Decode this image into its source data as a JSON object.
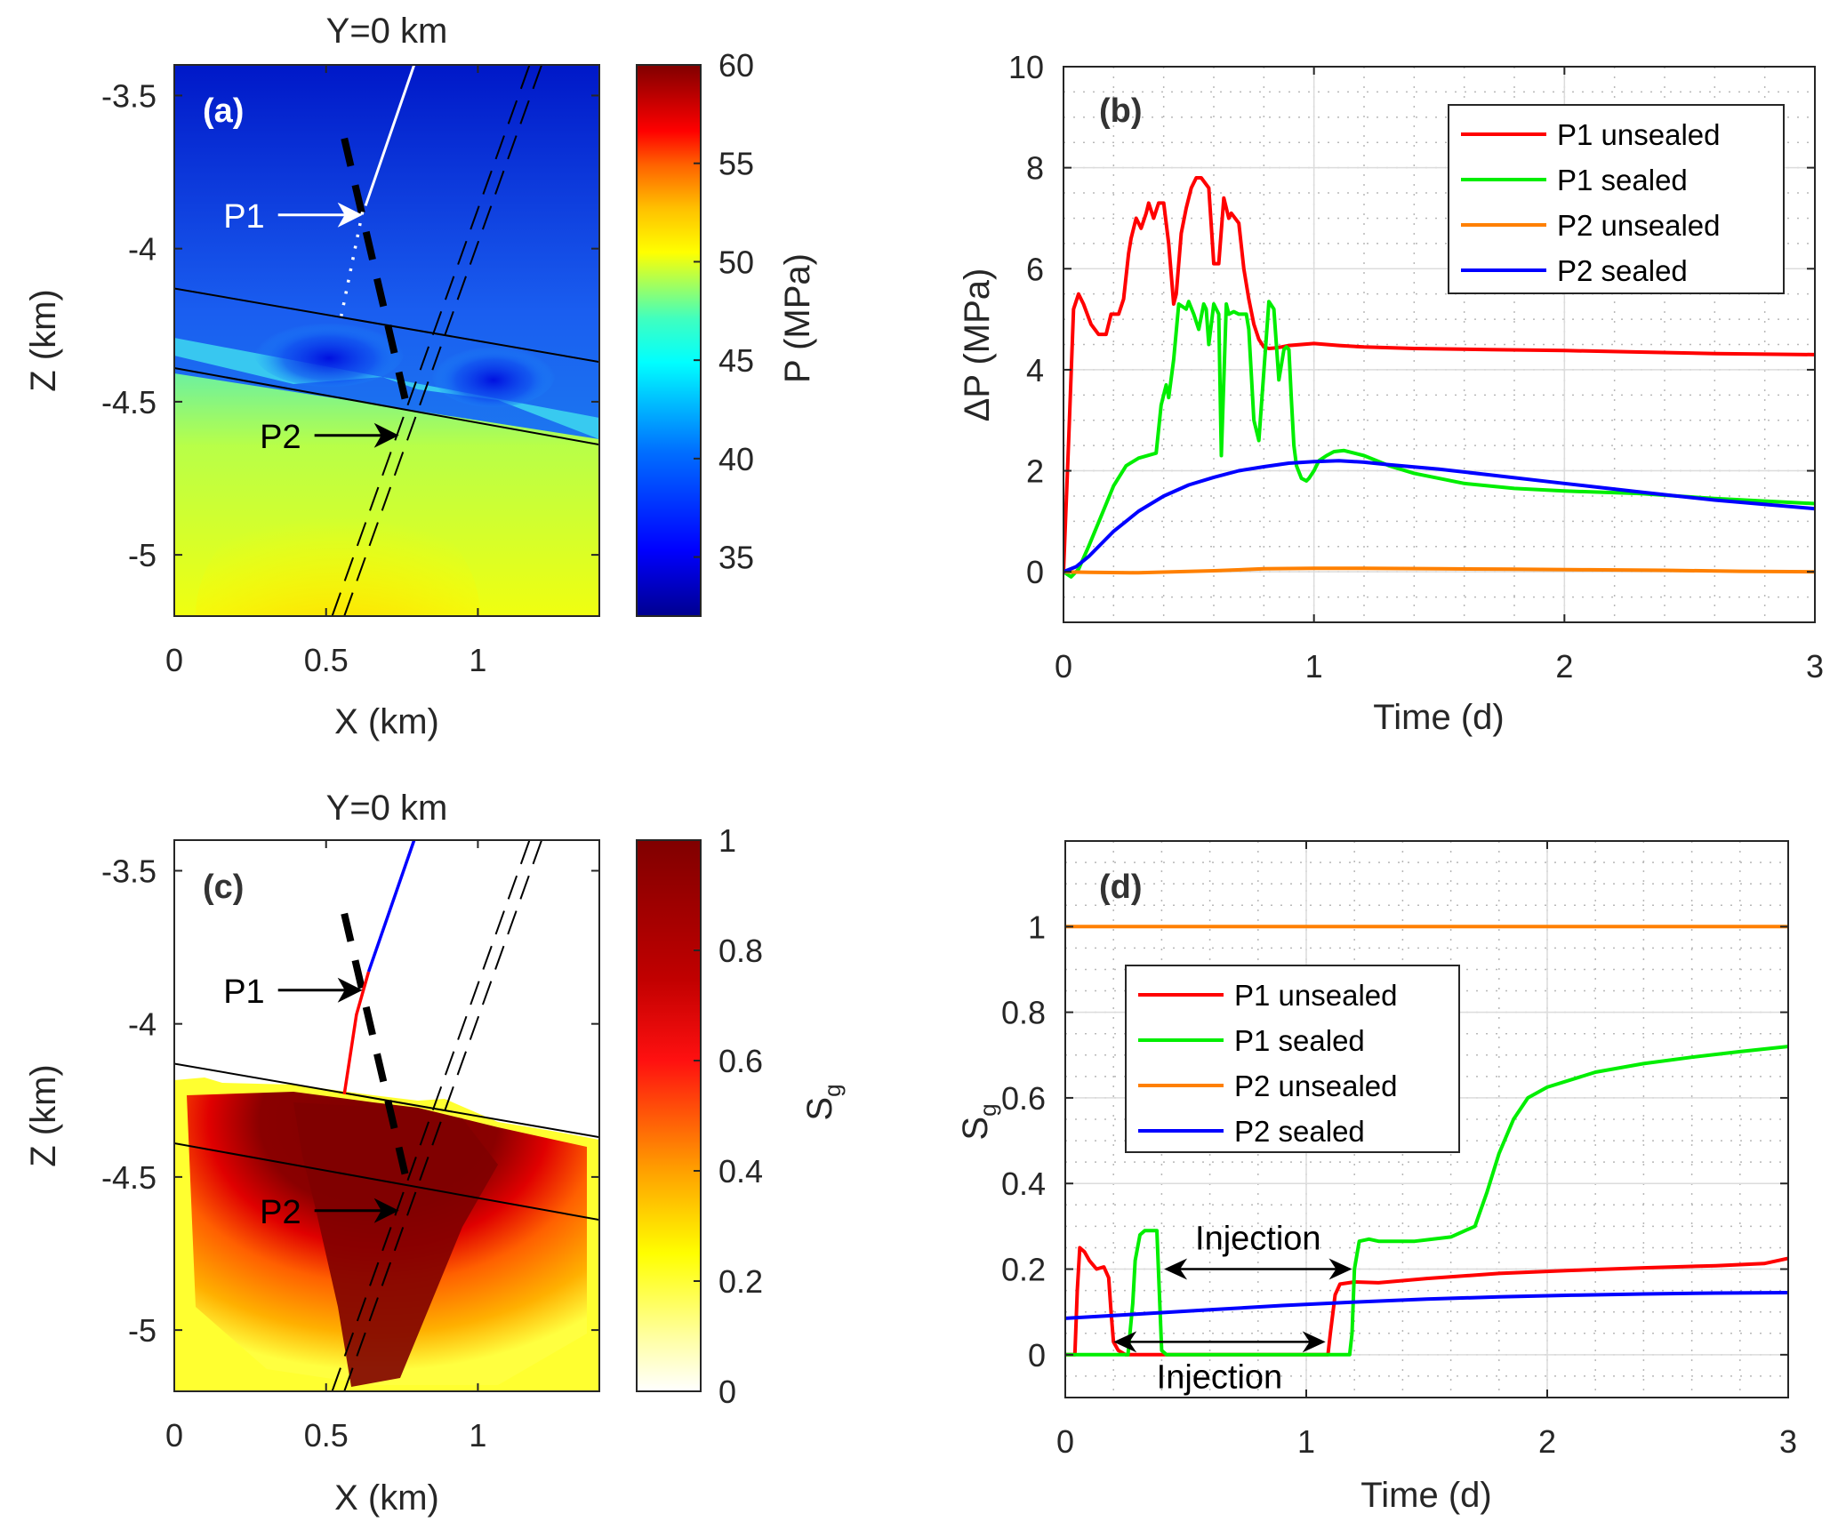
{
  "chart_data": [
    {
      "id": "a",
      "type": "heatmap",
      "panel_label": "(a)",
      "title": "Y=0 km",
      "xlabel": "X (km)",
      "ylabel": "Z (km)",
      "xlim": [
        0,
        1.4
      ],
      "ylim": [
        -5.2,
        -3.4
      ],
      "xticks": [
        0,
        0.5,
        1
      ],
      "xtick_labels": [
        "0",
        "0.5",
        "1"
      ],
      "yticks": [
        -3.5,
        -4,
        -4.5,
        -5
      ],
      "ytick_labels": [
        "-3.5",
        "-4",
        "-4.5",
        "-5"
      ],
      "colormap": "jet",
      "colorbar": {
        "label": "P (MPa)",
        "range": [
          32,
          60
        ],
        "ticks": [
          35,
          40,
          45,
          50,
          55,
          60
        ],
        "tick_labels": [
          "35",
          "40",
          "45",
          "50",
          "55",
          "60"
        ]
      },
      "annotations": [
        {
          "text": "P1",
          "color": "#ffffff",
          "x": 0.62,
          "z": -3.89
        },
        {
          "text": "P2",
          "color": "#000000",
          "x": 0.74,
          "z": -4.61
        }
      ],
      "features": {
        "well_color": "#ffffff",
        "upper_layer_line": [
          [
            0,
            -4.13
          ],
          [
            1.4,
            -4.37
          ]
        ],
        "lower_layer_line": [
          [
            0,
            -4.39
          ],
          [
            1.4,
            -4.64
          ]
        ]
      }
    },
    {
      "id": "b",
      "type": "line",
      "panel_label": "(b)",
      "xlabel": "Time (d)",
      "ylabel": "ΔP (MPa)",
      "xlim": [
        0,
        3
      ],
      "ylim": [
        -1,
        10
      ],
      "xticks": [
        0,
        1,
        2,
        3
      ],
      "xtick_labels": [
        "0",
        "1",
        "2",
        "3"
      ],
      "yticks": [
        0,
        2,
        4,
        6,
        8,
        10
      ],
      "ytick_labels": [
        "0",
        "2",
        "4",
        "6",
        "8",
        "10"
      ],
      "grid": true,
      "legend": "top-right",
      "series": [
        {
          "name": "P1 unsealed",
          "color": "#ff0000",
          "x": [
            0,
            0.02,
            0.04,
            0.06,
            0.08,
            0.11,
            0.14,
            0.17,
            0.19,
            0.2,
            0.22,
            0.24,
            0.26,
            0.27,
            0.29,
            0.31,
            0.33,
            0.34,
            0.36,
            0.38,
            0.4,
            0.42,
            0.44,
            0.45,
            0.47,
            0.49,
            0.51,
            0.53,
            0.55,
            0.58,
            0.6,
            0.62,
            0.64,
            0.66,
            0.67,
            0.7,
            0.72,
            0.74,
            0.76,
            0.78,
            0.8,
            0.82,
            0.84,
            0.87,
            0.9,
            0.95,
            1.0,
            1.1,
            1.2,
            1.4,
            1.7,
            2.0,
            2.3,
            2.6,
            3.0
          ],
          "y": [
            0,
            2.5,
            5.2,
            5.5,
            5.3,
            4.9,
            4.7,
            4.7,
            5.1,
            5.1,
            5.1,
            5.4,
            6.3,
            6.6,
            7.0,
            6.8,
            7.1,
            7.3,
            7.0,
            7.3,
            7.3,
            6.5,
            5.3,
            5.5,
            6.7,
            7.2,
            7.6,
            7.8,
            7.8,
            7.6,
            6.1,
            6.1,
            7.4,
            7.0,
            7.1,
            6.9,
            6.0,
            5.4,
            4.9,
            4.6,
            4.45,
            4.42,
            4.43,
            4.45,
            4.48,
            4.5,
            4.52,
            4.48,
            4.45,
            4.42,
            4.4,
            4.38,
            4.35,
            4.32,
            4.3
          ]
        },
        {
          "name": "P1 sealed",
          "color": "#00ee00",
          "x": [
            0,
            0.03,
            0.06,
            0.1,
            0.15,
            0.2,
            0.25,
            0.3,
            0.37,
            0.39,
            0.41,
            0.42,
            0.44,
            0.46,
            0.49,
            0.5,
            0.52,
            0.54,
            0.56,
            0.57,
            0.58,
            0.6,
            0.62,
            0.63,
            0.65,
            0.66,
            0.68,
            0.7,
            0.72,
            0.73,
            0.74,
            0.76,
            0.78,
            0.82,
            0.84,
            0.86,
            0.88,
            0.89,
            0.9,
            0.91,
            0.92,
            0.93,
            0.95,
            0.97,
            0.98,
            1.0,
            1.02,
            1.05,
            1.08,
            1.12,
            1.2,
            1.3,
            1.4,
            1.6,
            1.8,
            2.0,
            2.3,
            2.6,
            3.0
          ],
          "y": [
            0,
            -0.1,
            0.05,
            0.5,
            1.1,
            1.7,
            2.1,
            2.25,
            2.35,
            3.3,
            3.7,
            3.45,
            4.2,
            5.3,
            5.2,
            5.35,
            5.1,
            4.8,
            5.3,
            5.2,
            4.5,
            5.3,
            5.1,
            2.3,
            5.3,
            5.1,
            5.15,
            5.1,
            5.1,
            5.1,
            4.8,
            3.0,
            2.6,
            5.35,
            5.2,
            3.8,
            4.4,
            4.45,
            4.4,
            3.4,
            2.5,
            2.1,
            1.85,
            1.8,
            1.85,
            2.0,
            2.2,
            2.3,
            2.38,
            2.4,
            2.3,
            2.1,
            1.95,
            1.75,
            1.65,
            1.6,
            1.55,
            1.45,
            1.35
          ]
        },
        {
          "name": "P2 unsealed",
          "color": "#ff8000",
          "x": [
            0,
            0.1,
            0.3,
            0.6,
            0.8,
            1.0,
            1.2,
            1.5,
            1.8,
            2.1,
            2.4,
            2.7,
            3.0
          ],
          "y": [
            0,
            -0.01,
            -0.02,
            0.02,
            0.06,
            0.07,
            0.07,
            0.06,
            0.05,
            0.04,
            0.03,
            0.01,
            0
          ]
        },
        {
          "name": "P2 sealed",
          "color": "#0000ff",
          "x": [
            0,
            0.05,
            0.1,
            0.15,
            0.2,
            0.3,
            0.4,
            0.5,
            0.6,
            0.7,
            0.8,
            0.9,
            1.0,
            1.1,
            1.2,
            1.3,
            1.5,
            1.7,
            2.0,
            2.3,
            2.6,
            3.0
          ],
          "y": [
            0,
            0.1,
            0.3,
            0.55,
            0.8,
            1.2,
            1.5,
            1.72,
            1.87,
            2.0,
            2.08,
            2.15,
            2.18,
            2.2,
            2.17,
            2.12,
            2.03,
            1.92,
            1.75,
            1.58,
            1.42,
            1.25
          ]
        }
      ]
    },
    {
      "id": "c",
      "type": "heatmap",
      "panel_label": "(c)",
      "title": "Y=0 km",
      "xlabel": "X (km)",
      "ylabel": "Z (km)",
      "xlim": [
        0,
        1.4
      ],
      "ylim": [
        -5.2,
        -3.4
      ],
      "xticks": [
        0,
        0.5,
        1
      ],
      "xtick_labels": [
        "0",
        "0.5",
        "1"
      ],
      "yticks": [
        -3.5,
        -4,
        -4.5,
        -5
      ],
      "ytick_labels": [
        "-3.5",
        "-4",
        "-4.5",
        "-5"
      ],
      "colormap": "hot (reversed)",
      "colorbar": {
        "label": "S",
        "label_sub": "g",
        "range": [
          0,
          1
        ],
        "ticks": [
          0,
          0.2,
          0.4,
          0.6,
          0.8,
          1
        ],
        "tick_labels": [
          "0",
          "0.2",
          "0.4",
          "0.6",
          "0.8",
          "1"
        ]
      },
      "annotations": [
        {
          "text": "P1",
          "color": "#000000",
          "x": 0.62,
          "z": -3.89
        },
        {
          "text": "P2",
          "color": "#000000",
          "x": 0.74,
          "z": -4.61
        }
      ],
      "features": {
        "well_upper_color": "#0000ff",
        "well_lower_color": "#ff0000",
        "upper_layer_line": [
          [
            0,
            -4.13
          ],
          [
            1.4,
            -4.37
          ]
        ],
        "lower_layer_line": [
          [
            0,
            -4.39
          ],
          [
            1.4,
            -4.64
          ]
        ]
      }
    },
    {
      "id": "d",
      "type": "line",
      "panel_label": "(d)",
      "xlabel": "Time (d)",
      "ylabel": "S",
      "ylabel_sub": "g",
      "xlim": [
        0,
        3
      ],
      "ylim": [
        -0.1,
        1.2
      ],
      "xticks": [
        0,
        1,
        2,
        3
      ],
      "xtick_labels": [
        "0",
        "1",
        "2",
        "3"
      ],
      "yticks": [
        0,
        0.2,
        0.4,
        0.6,
        0.8,
        1
      ],
      "ytick_labels": [
        "0",
        "0.2",
        "0.4",
        "0.6",
        "0.8",
        "1"
      ],
      "grid": true,
      "legend": "center-left",
      "annotations": [
        {
          "text": "Injection",
          "arrow_from": 0.41,
          "arrow_to": 1.19,
          "y": 0.2,
          "text_pos": "above"
        },
        {
          "text": "Injection",
          "arrow_from": 0.2,
          "arrow_to": 1.08,
          "y": 0.03,
          "text_pos": "below"
        }
      ],
      "series": [
        {
          "name": "P1 unsealed",
          "color": "#ff0000",
          "x": [
            0,
            0.04,
            0.05,
            0.06,
            0.08,
            0.1,
            0.13,
            0.16,
            0.18,
            0.19,
            0.2,
            0.22,
            0.25,
            0.3,
            0.4,
            0.6,
            0.8,
            1.0,
            1.09,
            1.1,
            1.12,
            1.14,
            1.2,
            1.3,
            1.5,
            1.8,
            2.1,
            2.4,
            2.7,
            2.9,
            3.0
          ],
          "y": [
            0,
            0,
            0.15,
            0.25,
            0.24,
            0.22,
            0.2,
            0.205,
            0.18,
            0.1,
            0.03,
            0.01,
            0,
            0,
            0,
            0,
            0,
            0,
            0,
            0.05,
            0.14,
            0.165,
            0.17,
            0.168,
            0.178,
            0.19,
            0.197,
            0.203,
            0.208,
            0.213,
            0.225
          ]
        },
        {
          "name": "P1 sealed",
          "color": "#00ee00",
          "x": [
            0,
            0.1,
            0.2,
            0.26,
            0.28,
            0.29,
            0.31,
            0.33,
            0.38,
            0.39,
            0.4,
            0.42,
            0.6,
            0.8,
            1.0,
            1.18,
            1.19,
            1.2,
            1.22,
            1.26,
            1.3,
            1.45,
            1.6,
            1.7,
            1.75,
            1.8,
            1.86,
            1.92,
            2.0,
            2.2,
            2.4,
            2.6,
            2.8,
            3.0
          ],
          "y": [
            0,
            0,
            0,
            0,
            0.12,
            0.22,
            0.28,
            0.29,
            0.29,
            0.15,
            0.01,
            0,
            0,
            0,
            0,
            0,
            0.05,
            0.2,
            0.265,
            0.27,
            0.265,
            0.265,
            0.275,
            0.3,
            0.38,
            0.47,
            0.55,
            0.6,
            0.625,
            0.66,
            0.68,
            0.695,
            0.708,
            0.72
          ]
        },
        {
          "name": "P2 unsealed",
          "color": "#ff8000",
          "x": [
            0,
            3.0
          ],
          "y": [
            1,
            1
          ]
        },
        {
          "name": "P2 sealed",
          "color": "#0000ff",
          "x": [
            0,
            0.3,
            0.6,
            0.9,
            1.2,
            1.5,
            1.8,
            2.1,
            2.4,
            2.7,
            3.0
          ],
          "y": [
            0.085,
            0.095,
            0.105,
            0.115,
            0.123,
            0.13,
            0.135,
            0.139,
            0.142,
            0.144,
            0.145
          ]
        }
      ]
    }
  ]
}
